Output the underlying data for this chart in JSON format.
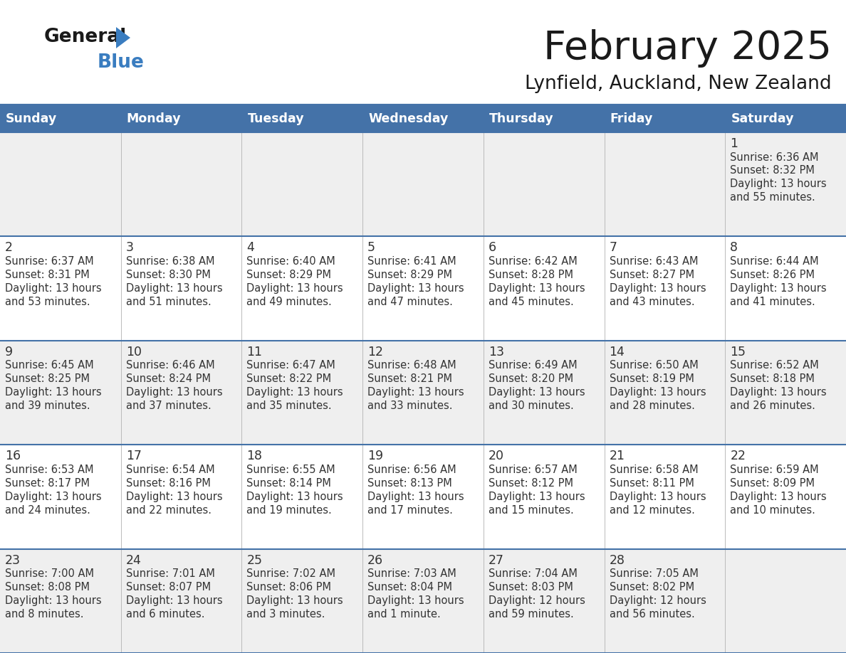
{
  "title": "February 2025",
  "subtitle": "Lynfield, Auckland, New Zealand",
  "header_bg_color": "#4472A8",
  "header_text_color": "#FFFFFF",
  "row_colors": [
    "#EFEFEF",
    "#FFFFFF",
    "#EFEFEF",
    "#FFFFFF",
    "#EFEFEF"
  ],
  "border_color": "#4472A8",
  "day_headers": [
    "Sunday",
    "Monday",
    "Tuesday",
    "Wednesday",
    "Thursday",
    "Friday",
    "Saturday"
  ],
  "title_color": "#1a1a1a",
  "subtitle_color": "#1a1a1a",
  "day_num_color": "#333333",
  "cell_text_color": "#333333",
  "logo_general_color": "#1a1a1a",
  "logo_blue_color": "#3A7DC0",
  "logo_triangle_color": "#3A7DC0",
  "days": [
    {
      "day": 1,
      "col": 6,
      "row": 0,
      "sunrise": "6:36 AM",
      "sunset": "8:32 PM",
      "daylight_line1": "Daylight: 13 hours",
      "daylight_line2": "and 55 minutes."
    },
    {
      "day": 2,
      "col": 0,
      "row": 1,
      "sunrise": "6:37 AM",
      "sunset": "8:31 PM",
      "daylight_line1": "Daylight: 13 hours",
      "daylight_line2": "and 53 minutes."
    },
    {
      "day": 3,
      "col": 1,
      "row": 1,
      "sunrise": "6:38 AM",
      "sunset": "8:30 PM",
      "daylight_line1": "Daylight: 13 hours",
      "daylight_line2": "and 51 minutes."
    },
    {
      "day": 4,
      "col": 2,
      "row": 1,
      "sunrise": "6:40 AM",
      "sunset": "8:29 PM",
      "daylight_line1": "Daylight: 13 hours",
      "daylight_line2": "and 49 minutes."
    },
    {
      "day": 5,
      "col": 3,
      "row": 1,
      "sunrise": "6:41 AM",
      "sunset": "8:29 PM",
      "daylight_line1": "Daylight: 13 hours",
      "daylight_line2": "and 47 minutes."
    },
    {
      "day": 6,
      "col": 4,
      "row": 1,
      "sunrise": "6:42 AM",
      "sunset": "8:28 PM",
      "daylight_line1": "Daylight: 13 hours",
      "daylight_line2": "and 45 minutes."
    },
    {
      "day": 7,
      "col": 5,
      "row": 1,
      "sunrise": "6:43 AM",
      "sunset": "8:27 PM",
      "daylight_line1": "Daylight: 13 hours",
      "daylight_line2": "and 43 minutes."
    },
    {
      "day": 8,
      "col": 6,
      "row": 1,
      "sunrise": "6:44 AM",
      "sunset": "8:26 PM",
      "daylight_line1": "Daylight: 13 hours",
      "daylight_line2": "and 41 minutes."
    },
    {
      "day": 9,
      "col": 0,
      "row": 2,
      "sunrise": "6:45 AM",
      "sunset": "8:25 PM",
      "daylight_line1": "Daylight: 13 hours",
      "daylight_line2": "and 39 minutes."
    },
    {
      "day": 10,
      "col": 1,
      "row": 2,
      "sunrise": "6:46 AM",
      "sunset": "8:24 PM",
      "daylight_line1": "Daylight: 13 hours",
      "daylight_line2": "and 37 minutes."
    },
    {
      "day": 11,
      "col": 2,
      "row": 2,
      "sunrise": "6:47 AM",
      "sunset": "8:22 PM",
      "daylight_line1": "Daylight: 13 hours",
      "daylight_line2": "and 35 minutes."
    },
    {
      "day": 12,
      "col": 3,
      "row": 2,
      "sunrise": "6:48 AM",
      "sunset": "8:21 PM",
      "daylight_line1": "Daylight: 13 hours",
      "daylight_line2": "and 33 minutes."
    },
    {
      "day": 13,
      "col": 4,
      "row": 2,
      "sunrise": "6:49 AM",
      "sunset": "8:20 PM",
      "daylight_line1": "Daylight: 13 hours",
      "daylight_line2": "and 30 minutes."
    },
    {
      "day": 14,
      "col": 5,
      "row": 2,
      "sunrise": "6:50 AM",
      "sunset": "8:19 PM",
      "daylight_line1": "Daylight: 13 hours",
      "daylight_line2": "and 28 minutes."
    },
    {
      "day": 15,
      "col": 6,
      "row": 2,
      "sunrise": "6:52 AM",
      "sunset": "8:18 PM",
      "daylight_line1": "Daylight: 13 hours",
      "daylight_line2": "and 26 minutes."
    },
    {
      "day": 16,
      "col": 0,
      "row": 3,
      "sunrise": "6:53 AM",
      "sunset": "8:17 PM",
      "daylight_line1": "Daylight: 13 hours",
      "daylight_line2": "and 24 minutes."
    },
    {
      "day": 17,
      "col": 1,
      "row": 3,
      "sunrise": "6:54 AM",
      "sunset": "8:16 PM",
      "daylight_line1": "Daylight: 13 hours",
      "daylight_line2": "and 22 minutes."
    },
    {
      "day": 18,
      "col": 2,
      "row": 3,
      "sunrise": "6:55 AM",
      "sunset": "8:14 PM",
      "daylight_line1": "Daylight: 13 hours",
      "daylight_line2": "and 19 minutes."
    },
    {
      "day": 19,
      "col": 3,
      "row": 3,
      "sunrise": "6:56 AM",
      "sunset": "8:13 PM",
      "daylight_line1": "Daylight: 13 hours",
      "daylight_line2": "and 17 minutes."
    },
    {
      "day": 20,
      "col": 4,
      "row": 3,
      "sunrise": "6:57 AM",
      "sunset": "8:12 PM",
      "daylight_line1": "Daylight: 13 hours",
      "daylight_line2": "and 15 minutes."
    },
    {
      "day": 21,
      "col": 5,
      "row": 3,
      "sunrise": "6:58 AM",
      "sunset": "8:11 PM",
      "daylight_line1": "Daylight: 13 hours",
      "daylight_line2": "and 12 minutes."
    },
    {
      "day": 22,
      "col": 6,
      "row": 3,
      "sunrise": "6:59 AM",
      "sunset": "8:09 PM",
      "daylight_line1": "Daylight: 13 hours",
      "daylight_line2": "and 10 minutes."
    },
    {
      "day": 23,
      "col": 0,
      "row": 4,
      "sunrise": "7:00 AM",
      "sunset": "8:08 PM",
      "daylight_line1": "Daylight: 13 hours",
      "daylight_line2": "and 8 minutes."
    },
    {
      "day": 24,
      "col": 1,
      "row": 4,
      "sunrise": "7:01 AM",
      "sunset": "8:07 PM",
      "daylight_line1": "Daylight: 13 hours",
      "daylight_line2": "and 6 minutes."
    },
    {
      "day": 25,
      "col": 2,
      "row": 4,
      "sunrise": "7:02 AM",
      "sunset": "8:06 PM",
      "daylight_line1": "Daylight: 13 hours",
      "daylight_line2": "and 3 minutes."
    },
    {
      "day": 26,
      "col": 3,
      "row": 4,
      "sunrise": "7:03 AM",
      "sunset": "8:04 PM",
      "daylight_line1": "Daylight: 13 hours",
      "daylight_line2": "and 1 minute."
    },
    {
      "day": 27,
      "col": 4,
      "row": 4,
      "sunrise": "7:04 AM",
      "sunset": "8:03 PM",
      "daylight_line1": "Daylight: 12 hours",
      "daylight_line2": "and 59 minutes."
    },
    {
      "day": 28,
      "col": 5,
      "row": 4,
      "sunrise": "7:05 AM",
      "sunset": "8:02 PM",
      "daylight_line1": "Daylight: 12 hours",
      "daylight_line2": "and 56 minutes."
    }
  ]
}
